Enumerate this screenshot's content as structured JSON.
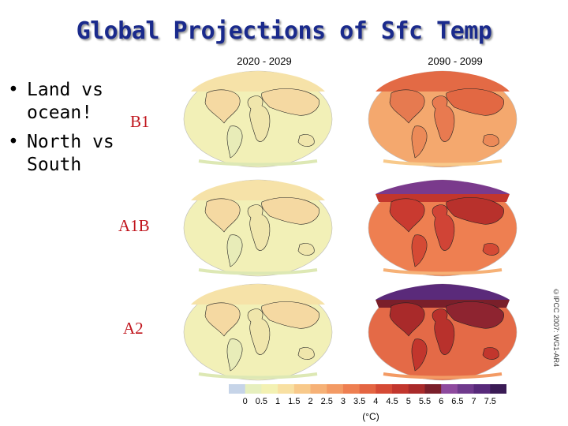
{
  "title": "Global Projections of Sfc Temp",
  "bullets": [
    "Land vs ocean!",
    "North vs South"
  ],
  "columns": [
    "2020 - 2029",
    "2090 - 2099"
  ],
  "scenarios": [
    "B1",
    "A1B",
    "A2"
  ],
  "credit": "©IPCC 2007: WG1-AR4",
  "colorbar": {
    "labels": [
      "0",
      "0.5",
      "1",
      "1.5",
      "2",
      "2.5",
      "3",
      "3.5",
      "4",
      "4.5",
      "5",
      "5.5",
      "6",
      "6.5",
      "7",
      "7.5"
    ],
    "colors": [
      "#c6d4e8",
      "#e6efbe",
      "#f3f1b3",
      "#f8e0a2",
      "#f8c98a",
      "#f6b176",
      "#f39a64",
      "#ee7f51",
      "#e46542",
      "#d54a35",
      "#c2362d",
      "#a92a2a",
      "#7a1f2a",
      "#8e4a9e",
      "#6f3a8c",
      "#57297a",
      "#3a1b55"
    ],
    "unit": "(°C)"
  },
  "colors": {
    "title": "#1a2a8c",
    "scenario_label": "#c0141c",
    "ocean_near": "#f2f0b7",
    "land_near": "#f5d39b",
    "ocean_far_b1": "#f4a86e",
    "land_far_b1": "#e66a45",
    "ocean_far_a2": "#e46a47",
    "land_far_a2": "#b83030",
    "arctic_far": "#6f3a8c"
  }
}
